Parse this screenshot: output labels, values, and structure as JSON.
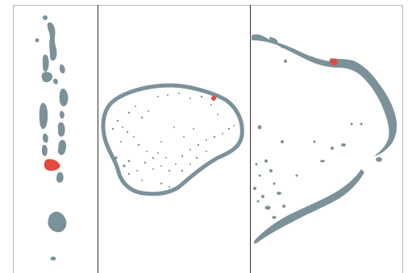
{
  "map": {
    "type": "locator-map-panels",
    "panels": [
      {
        "id": "atoll-chain",
        "highlight": "red-island"
      },
      {
        "id": "atoll-detail",
        "highlight": "red-dot-on-rim"
      },
      {
        "id": "reef-arc",
        "highlight": "red-dot-on-rim"
      }
    ],
    "colors": {
      "land": "#7b929a",
      "highlight": "#e24a3f",
      "divider": "#333333",
      "border": "#b9b9b9",
      "background": "#ffffff"
    }
  }
}
